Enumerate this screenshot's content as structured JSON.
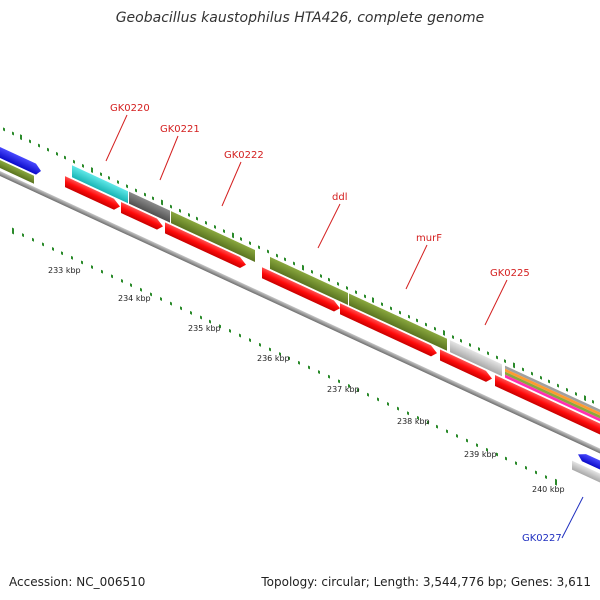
{
  "title": "Geobacillus kaustophilus HTA426, complete genome",
  "footer": {
    "accession": "Accession: NC_006510",
    "summary": "Topology: circular; Length: 3,544,776 bp; Genes: 3,611"
  },
  "ticks": [
    "233 kbp",
    "234 kbp",
    "235 kbp",
    "236 kbp",
    "237 kbp",
    "238 kbp",
    "239 kbp",
    "240 kbp"
  ],
  "gene_labels": [
    {
      "text": "GK0220",
      "color": "#d42020"
    },
    {
      "text": "GK0221",
      "color": "#d42020"
    },
    {
      "text": "GK0222",
      "color": "#d42020"
    },
    {
      "text": "ddl",
      "color": "#d42020"
    },
    {
      "text": "murF",
      "color": "#d42020"
    },
    {
      "text": "GK0225",
      "color": "#d42020"
    },
    {
      "text": "GK0227",
      "color": "#2030c0"
    }
  ],
  "colors": {
    "backbone": "#909090",
    "cds_arrow": "#ff1a1a",
    "olive": "#6e8c2a",
    "cyan": "#2ad4d4",
    "dark_gray": "#6b6b6b",
    "light_gray": "#c8c8c8",
    "blue": "#1a1aee",
    "tick_green": "#2a8a2a",
    "orange": "#ff9a30",
    "magenta": "#ff30b0"
  }
}
